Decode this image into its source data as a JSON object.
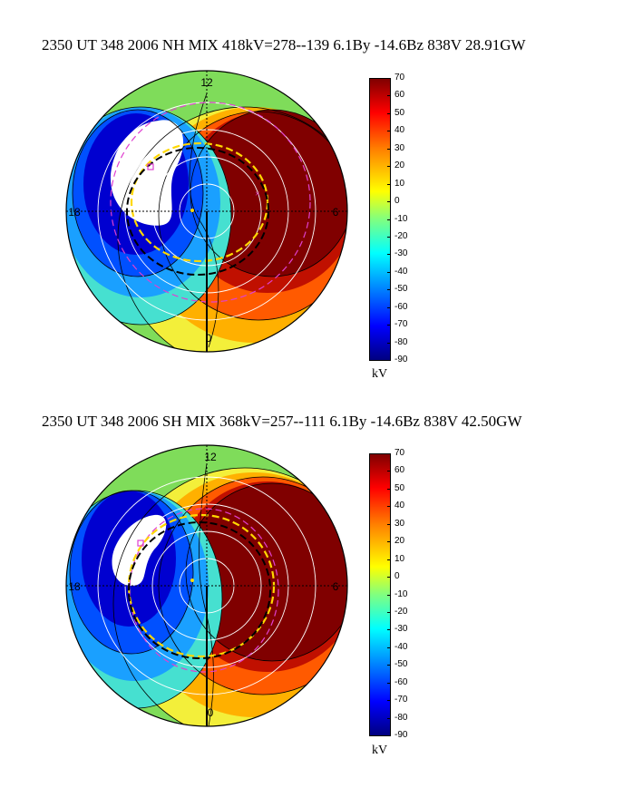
{
  "panels": [
    {
      "id": "nh",
      "title": "2350 UT 348 2006 NH MIX 418kV=278--139  6.1By -14.6Bz 838V 28.91GW",
      "hemisphere": "NH",
      "cpcp_kV": 418,
      "potential_max_kV": 278,
      "potential_min_kV": -139,
      "By": 6.1,
      "Bz": -14.6,
      "velocity_V": 838,
      "power_GW": 28.91,
      "clock_labels": {
        "top": "12",
        "right": "6",
        "bottom": "0",
        "left": "18"
      }
    },
    {
      "id": "sh",
      "title": "2350 UT 348 2006 SH MIX 368kV=257--111  6.1By -14.6Bz 838V 42.50GW",
      "hemisphere": "SH",
      "cpcp_kV": 368,
      "potential_max_kV": 257,
      "potential_min_kV": -111,
      "By": 6.1,
      "Bz": -14.6,
      "velocity_V": 838,
      "power_GW": 42.5,
      "clock_labels": {
        "top": "12",
        "right": "6",
        "bottom": "0",
        "left": "18"
      }
    }
  ],
  "chart_data": {
    "type": "heatmap",
    "projection": "polar",
    "colorbar": {
      "ticks": [
        "70",
        "60",
        "50",
        "40",
        "30",
        "20",
        "10",
        "0",
        "-10",
        "-20",
        "-30",
        "-40",
        "-50",
        "-60",
        "-70",
        "-80",
        "-90"
      ],
      "range": [
        -90,
        70
      ],
      "unit": "kV",
      "colormap": "jet"
    }
  },
  "colors": {
    "background": "#ffffff",
    "contour_line": "#000000",
    "latitude_circle": "#ffffff",
    "boundary_yellow": "#ffd800",
    "boundary_magenta": "#e040d0",
    "boundary_black": "#000000"
  }
}
